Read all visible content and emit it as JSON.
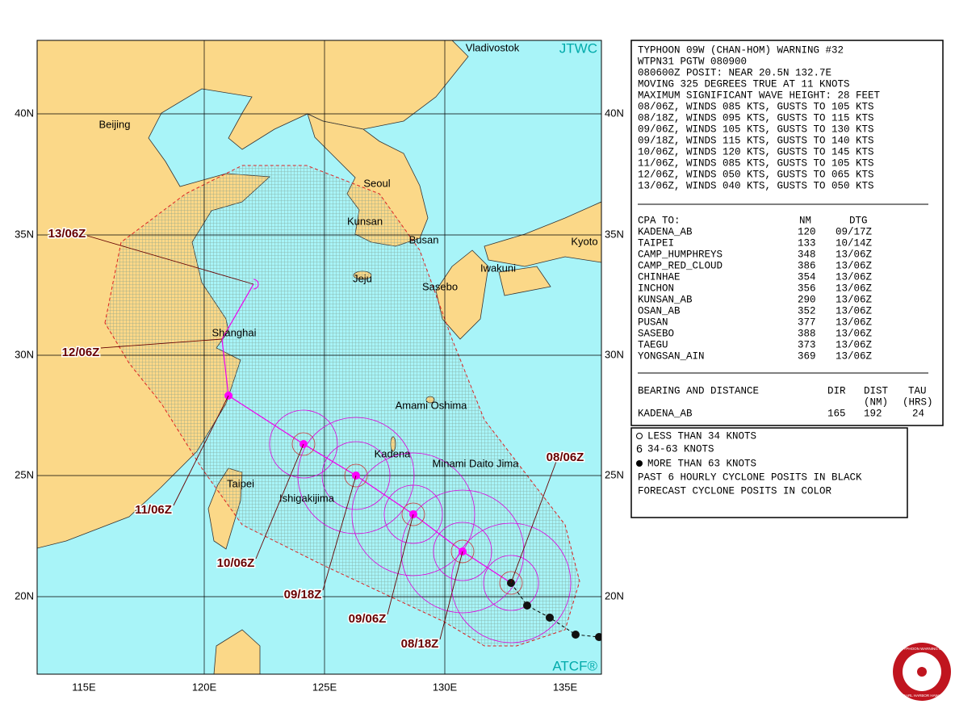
{
  "map": {
    "source": "JTWC",
    "atcf": "ATCF®",
    "lat_labels": [
      "40N",
      "35N",
      "30N",
      "25N",
      "20N"
    ],
    "lon_labels": [
      "115E",
      "120E",
      "125E",
      "130E",
      "135E"
    ],
    "places": [
      "Vladivostok",
      "Beijing",
      "Seoul",
      "Kunsan",
      "Busan",
      "Kyoto",
      "Iwakuni",
      "Jeju",
      "Sasebo",
      "Shanghai",
      "Amami Oshima",
      "Kadena",
      "Minami Daito Jima",
      "Taipei",
      "Ishigakijima"
    ],
    "times": [
      "13/06Z",
      "12/06Z",
      "11/06Z",
      "10/06Z",
      "09/18Z",
      "09/06Z",
      "08/18Z",
      "08/06Z"
    ]
  },
  "warning": {
    "lines": [
      "TYPHOON 09W (CHAN-HOM) WARNING #32",
      "WTPN31 PGTW 080900",
      "080600Z POSIT: NEAR 20.5N 132.7E",
      "MOVING 325 DEGREES TRUE AT 11 KNOTS",
      "MAXIMUM SIGNIFICANT WAVE HEIGHT: 28 FEET",
      "08/06Z, WINDS 085 KTS, GUSTS TO 105 KTS",
      "08/18Z, WINDS 095 KTS, GUSTS TO 115 KTS",
      "09/06Z, WINDS 105 KTS, GUSTS TO 130 KTS",
      "09/18Z, WINDS 115 KTS, GUSTS TO 140 KTS",
      "10/06Z, WINDS 120 KTS, GUSTS TO 145 KTS",
      "11/06Z, WINDS 085 KTS, GUSTS TO 105 KTS",
      "12/06Z, WINDS 050 KTS, GUSTS TO 065 KTS",
      "13/06Z, WINDS 040 KTS, GUSTS TO 050 KTS"
    ]
  },
  "cpa": {
    "header": [
      "CPA TO:",
      "NM",
      "DTG"
    ],
    "rows": [
      [
        "KADENA_AB",
        "120",
        "09/17Z"
      ],
      [
        "TAIPEI",
        "133",
        "10/14Z"
      ],
      [
        "CAMP_HUMPHREYS",
        "348",
        "13/06Z"
      ],
      [
        "CAMP_RED_CLOUD",
        "386",
        "13/06Z"
      ],
      [
        "CHINHAE",
        "354",
        "13/06Z"
      ],
      [
        "INCHON",
        "356",
        "13/06Z"
      ],
      [
        "KUNSAN_AB",
        "290",
        "13/06Z"
      ],
      [
        "OSAN_AB",
        "352",
        "13/06Z"
      ],
      [
        "PUSAN",
        "377",
        "13/06Z"
      ],
      [
        "SASEBO",
        "388",
        "13/06Z"
      ],
      [
        "TAEGU",
        "373",
        "13/06Z"
      ],
      [
        "YONGSAN_AIN",
        "369",
        "13/06Z"
      ]
    ]
  },
  "bearing": {
    "header": [
      "BEARING AND DISTANCE",
      "DIR",
      "DIST",
      "TAU"
    ],
    "units": [
      "(NM)",
      "(HRS)"
    ],
    "row": [
      "KADENA_AB",
      "165",
      "192",
      "24"
    ]
  },
  "legend": [
    "LESS THAN 34 KNOTS",
    "34-63 KNOTS",
    "MORE THAN 63 KNOTS",
    "PAST 6 HOURLY CYCLONE POSITS IN BLACK",
    "FORECAST CYCLONE POSITS IN COLOR"
  ],
  "logo": [
    "JOINT TYPHOON WARNING CENTER",
    "PEARL HARBOR HAWAII"
  ]
}
